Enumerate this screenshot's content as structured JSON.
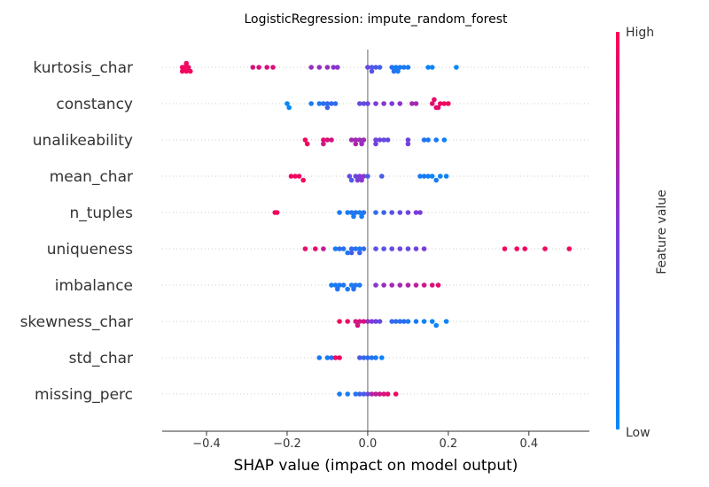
{
  "chart_data": {
    "type": "scatter",
    "subtype": "shap-beeswarm",
    "title": "LogisticRegression: impute_random_forest",
    "xlabel": "SHAP value (impact on model output)",
    "xlim": [
      -0.51,
      0.55
    ],
    "xticks": [
      -0.4,
      -0.2,
      0.0,
      0.2,
      0.4
    ],
    "xtick_labels": [
      "−0.4",
      "−0.2",
      "0.0",
      "0.2",
      "0.4"
    ],
    "grid": false,
    "zero_line": true,
    "features": [
      {
        "name": "kurtosis_char",
        "points": [
          [
            -0.46,
            0.95
          ],
          [
            -0.455,
            0.95
          ],
          [
            -0.45,
            0.95
          ],
          [
            -0.445,
            0.95
          ],
          [
            -0.44,
            0.95
          ],
          [
            -0.46,
            0.95
          ],
          [
            -0.45,
            0.95
          ],
          [
            -0.285,
            0.85
          ],
          [
            -0.27,
            0.85
          ],
          [
            -0.25,
            0.85
          ],
          [
            -0.235,
            0.85
          ],
          [
            -0.14,
            0.6
          ],
          [
            -0.12,
            0.6
          ],
          [
            -0.1,
            0.6
          ],
          [
            -0.085,
            0.55
          ],
          [
            -0.075,
            0.55
          ],
          [
            0.0,
            0.4
          ],
          [
            0.01,
            0.35
          ],
          [
            0.02,
            0.3
          ],
          [
            0.03,
            0.25
          ],
          [
            0.01,
            0.35
          ],
          [
            0.06,
            0.15
          ],
          [
            0.07,
            0.1
          ],
          [
            0.08,
            0.1
          ],
          [
            0.09,
            0.1
          ],
          [
            0.1,
            0.1
          ],
          [
            0.065,
            0.15
          ],
          [
            0.075,
            0.1
          ],
          [
            0.15,
            0.05
          ],
          [
            0.16,
            0.05
          ],
          [
            0.22,
            0.02
          ]
        ]
      },
      {
        "name": "constancy",
        "points": [
          [
            -0.2,
            0.02
          ],
          [
            -0.195,
            0.02
          ],
          [
            -0.14,
            0.1
          ],
          [
            -0.12,
            0.1
          ],
          [
            -0.11,
            0.2
          ],
          [
            -0.1,
            0.2
          ],
          [
            -0.09,
            0.2
          ],
          [
            -0.08,
            0.2
          ],
          [
            -0.1,
            0.25
          ],
          [
            -0.02,
            0.4
          ],
          [
            -0.01,
            0.4
          ],
          [
            0.0,
            0.45
          ],
          [
            0.02,
            0.5
          ],
          [
            0.04,
            0.55
          ],
          [
            0.06,
            0.5
          ],
          [
            0.08,
            0.55
          ],
          [
            0.11,
            0.65
          ],
          [
            0.12,
            0.65
          ],
          [
            0.16,
            0.9
          ],
          [
            0.17,
            0.9
          ],
          [
            0.18,
            0.95
          ],
          [
            0.19,
            0.95
          ],
          [
            0.2,
            0.95
          ],
          [
            0.165,
            0.9
          ],
          [
            0.175,
            0.9
          ]
        ]
      },
      {
        "name": "unalikeability",
        "points": [
          [
            -0.155,
            0.95
          ],
          [
            -0.15,
            0.95
          ],
          [
            -0.11,
            0.9
          ],
          [
            -0.1,
            0.85
          ],
          [
            -0.09,
            0.85
          ],
          [
            -0.11,
            0.8
          ],
          [
            -0.04,
            0.65
          ],
          [
            -0.03,
            0.65
          ],
          [
            -0.02,
            0.6
          ],
          [
            -0.01,
            0.65
          ],
          [
            -0.03,
            0.7
          ],
          [
            -0.015,
            0.6
          ],
          [
            0.02,
            0.45
          ],
          [
            0.03,
            0.45
          ],
          [
            0.04,
            0.4
          ],
          [
            0.05,
            0.4
          ],
          [
            0.02,
            0.45
          ],
          [
            0.1,
            0.45
          ],
          [
            0.1,
            0.45
          ],
          [
            0.14,
            0.15
          ],
          [
            0.15,
            0.1
          ],
          [
            0.17,
            0.1
          ],
          [
            0.19,
            0.05
          ]
        ]
      },
      {
        "name": "mean_char",
        "points": [
          [
            -0.19,
            0.95
          ],
          [
            -0.18,
            0.95
          ],
          [
            -0.17,
            0.95
          ],
          [
            -0.16,
            0.95
          ],
          [
            -0.045,
            0.4
          ],
          [
            -0.03,
            0.45
          ],
          [
            -0.02,
            0.5
          ],
          [
            -0.01,
            0.55
          ],
          [
            -0.025,
            0.5
          ],
          [
            -0.015,
            0.55
          ],
          [
            -0.04,
            0.3
          ],
          [
            0.0,
            0.3
          ],
          [
            0.035,
            0.3
          ],
          [
            0.13,
            0.1
          ],
          [
            0.14,
            0.1
          ],
          [
            0.15,
            0.05
          ],
          [
            0.16,
            0.05
          ],
          [
            0.17,
            0.1
          ],
          [
            0.18,
            0.05
          ],
          [
            0.195,
            0.05
          ]
        ]
      },
      {
        "name": "n_tuples",
        "points": [
          [
            -0.23,
            0.95
          ],
          [
            -0.225,
            0.95
          ],
          [
            -0.07,
            0.1
          ],
          [
            -0.05,
            0.1
          ],
          [
            -0.04,
            0.15
          ],
          [
            -0.03,
            0.15
          ],
          [
            -0.02,
            0.1
          ],
          [
            -0.01,
            0.15
          ],
          [
            -0.035,
            0.1
          ],
          [
            -0.015,
            0.1
          ],
          [
            0.02,
            0.2
          ],
          [
            0.04,
            0.25
          ],
          [
            0.06,
            0.35
          ],
          [
            0.08,
            0.4
          ],
          [
            0.1,
            0.45
          ],
          [
            0.12,
            0.5
          ],
          [
            0.13,
            0.5
          ]
        ]
      },
      {
        "name": "uniqueness",
        "points": [
          [
            -0.155,
            0.9
          ],
          [
            -0.13,
            0.9
          ],
          [
            -0.11,
            0.75
          ],
          [
            -0.08,
            0.1
          ],
          [
            -0.07,
            0.2
          ],
          [
            -0.06,
            0.15
          ],
          [
            -0.05,
            0.1
          ],
          [
            -0.04,
            0.2
          ],
          [
            -0.03,
            0.15
          ],
          [
            -0.02,
            0.1
          ],
          [
            -0.01,
            0.2
          ],
          [
            -0.04,
            0.3
          ],
          [
            -0.02,
            0.25
          ],
          [
            0.02,
            0.35
          ],
          [
            0.04,
            0.35
          ],
          [
            0.06,
            0.4
          ],
          [
            0.08,
            0.45
          ],
          [
            0.1,
            0.4
          ],
          [
            0.12,
            0.45
          ],
          [
            0.14,
            0.5
          ],
          [
            0.34,
            0.95
          ],
          [
            0.37,
            0.95
          ],
          [
            0.39,
            0.95
          ],
          [
            0.44,
            0.95
          ],
          [
            0.5,
            0.95
          ]
        ]
      },
      {
        "name": "imbalance",
        "points": [
          [
            -0.09,
            0.1
          ],
          [
            -0.08,
            0.1
          ],
          [
            -0.07,
            0.1
          ],
          [
            -0.06,
            0.15
          ],
          [
            -0.05,
            0.1
          ],
          [
            -0.04,
            0.1
          ],
          [
            -0.03,
            0.15
          ],
          [
            -0.02,
            0.1
          ],
          [
            -0.075,
            0.15
          ],
          [
            -0.035,
            0.15
          ],
          [
            0.02,
            0.55
          ],
          [
            0.04,
            0.6
          ],
          [
            0.06,
            0.65
          ],
          [
            0.08,
            0.65
          ],
          [
            0.1,
            0.7
          ],
          [
            0.12,
            0.75
          ],
          [
            0.14,
            0.8
          ],
          [
            0.16,
            0.85
          ],
          [
            0.175,
            0.9
          ]
        ]
      },
      {
        "name": "skewness_char",
        "points": [
          [
            -0.07,
            0.95
          ],
          [
            -0.05,
            0.9
          ],
          [
            -0.03,
            0.85
          ],
          [
            -0.02,
            0.8
          ],
          [
            -0.01,
            0.85
          ],
          [
            -0.025,
            0.85
          ],
          [
            0.0,
            0.6
          ],
          [
            0.01,
            0.5
          ],
          [
            0.02,
            0.45
          ],
          [
            0.03,
            0.4
          ],
          [
            0.06,
            0.2
          ],
          [
            0.07,
            0.2
          ],
          [
            0.08,
            0.15
          ],
          [
            0.09,
            0.2
          ],
          [
            0.1,
            0.1
          ],
          [
            0.12,
            0.1
          ],
          [
            0.14,
            0.05
          ],
          [
            0.16,
            0.05
          ],
          [
            0.17,
            0.05
          ],
          [
            0.195,
            0.05
          ]
        ]
      },
      {
        "name": "std_char",
        "points": [
          [
            -0.12,
            0.1
          ],
          [
            -0.1,
            0.1
          ],
          [
            -0.09,
            0.15
          ],
          [
            -0.08,
            0.95
          ],
          [
            -0.07,
            0.95
          ],
          [
            -0.02,
            0.3
          ],
          [
            -0.01,
            0.2
          ],
          [
            0.0,
            0.2
          ],
          [
            0.01,
            0.15
          ],
          [
            0.02,
            0.1
          ],
          [
            0.035,
            0.05
          ]
        ]
      },
      {
        "name": "missing_perc",
        "points": [
          [
            -0.07,
            0.1
          ],
          [
            -0.05,
            0.1
          ],
          [
            -0.03,
            0.15
          ],
          [
            -0.02,
            0.25
          ],
          [
            -0.01,
            0.3
          ],
          [
            0.0,
            0.4
          ],
          [
            0.01,
            0.7
          ],
          [
            0.02,
            0.75
          ],
          [
            0.03,
            0.8
          ],
          [
            0.04,
            0.85
          ],
          [
            0.05,
            0.9
          ],
          [
            0.07,
            0.95
          ]
        ]
      }
    ],
    "colorbar": {
      "label": "Feature value",
      "high_label": "High",
      "low_label": "Low",
      "low_color": "#008bfb",
      "mid_color": "#7c3bd9",
      "high_color": "#ff0052"
    }
  }
}
